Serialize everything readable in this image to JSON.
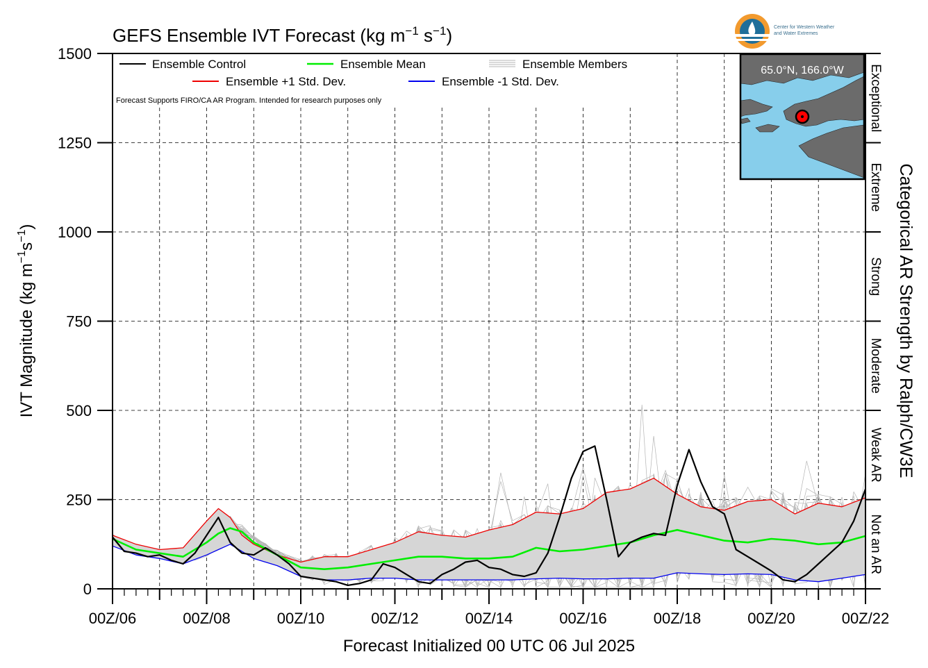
{
  "title_main": "GEFS Ensemble IVT Forecast (kg m",
  "title_sup1": "−1",
  "title_mid": " s",
  "title_sup2": "−1",
  "title_end": ")",
  "xlabel": "Forecast Initialized 00 UTC 06 Jul 2025",
  "ylabel_main": "IVT Magnitude (kg m",
  "ylabel_sup1": "−1",
  "ylabel_mid": "s",
  "ylabel_sup2": "−1",
  "ylabel_end": ")",
  "right_label": "Categorical AR Strength by Ralph/CW3E",
  "note": "Forecast Supports FIRO/CA AR Program. Intended for research purposes only",
  "logo_line1": "Center for Western Weather",
  "logo_line2": "and Water Extremes",
  "location": "65.0°N, 166.0°W",
  "legend": {
    "control": "Ensemble Control",
    "mean": "Ensemble Mean",
    "members": "Ensemble Members",
    "plus": "Ensemble +1 Std. Dev.",
    "minus": "Ensemble -1 Std. Dev."
  },
  "colors": {
    "control": "#000000",
    "mean": "#00ee00",
    "plus": "#ee0000",
    "minus": "#0000ee",
    "members": "#b4b4b4",
    "spread_fill": "#d6d6d6",
    "map_ocean": "#87ceeb",
    "map_land": "#6b6b6b"
  },
  "chart_data": {
    "type": "line",
    "x_unit": "days since 00Z/06 (6-hourly)",
    "xlim": [
      0,
      16
    ],
    "ylim": [
      0,
      1500
    ],
    "y_ticks": [
      0,
      250,
      500,
      750,
      1000,
      1250,
      1500
    ],
    "x_tick_labels": [
      "00Z/06",
      "00Z/08",
      "00Z/10",
      "00Z/12",
      "00Z/14",
      "00Z/16",
      "00Z/18",
      "00Z/20",
      "00Z/22"
    ],
    "x_tick_days": [
      0,
      2,
      4,
      6,
      8,
      10,
      12,
      14,
      16
    ],
    "grid": true,
    "legend_position": "top-left",
    "categories": [
      {
        "label": "Not an AR",
        "from": 0,
        "to": 250
      },
      {
        "label": "Weak AR",
        "from": 250,
        "to": 500
      },
      {
        "label": "Moderate",
        "from": 500,
        "to": 750
      },
      {
        "label": "Strong",
        "from": 750,
        "to": 1000
      },
      {
        "label": "Extreme",
        "from": 1000,
        "to": 1250
      },
      {
        "label": "Exceptional",
        "from": 1250,
        "to": 1500
      }
    ],
    "series": [
      {
        "name": "Ensemble Control",
        "key": "control",
        "x": [
          0,
          0.25,
          0.5,
          0.75,
          1,
          1.25,
          1.5,
          1.75,
          2,
          2.25,
          2.5,
          2.75,
          3,
          3.25,
          3.5,
          3.75,
          4,
          4.25,
          4.5,
          4.75,
          5,
          5.25,
          5.5,
          5.75,
          6,
          6.25,
          6.5,
          6.75,
          7,
          7.25,
          7.5,
          7.75,
          8,
          8.25,
          8.5,
          8.75,
          9,
          9.25,
          9.5,
          9.75,
          10,
          10.25,
          10.5,
          10.75,
          11,
          11.25,
          11.5,
          11.75,
          12,
          12.25,
          12.5,
          12.75,
          13,
          13.25,
          13.5,
          13.75,
          14,
          14.25,
          14.5,
          14.75,
          15,
          15.25,
          15.5,
          15.75,
          16
        ],
        "values": [
          145,
          105,
          100,
          90,
          95,
          80,
          70,
          100,
          150,
          200,
          130,
          100,
          95,
          115,
          95,
          70,
          35,
          30,
          25,
          20,
          10,
          15,
          25,
          70,
          60,
          40,
          20,
          15,
          40,
          55,
          75,
          80,
          60,
          55,
          40,
          35,
          45,
          100,
          200,
          310,
          385,
          400,
          250,
          90,
          130,
          145,
          155,
          150,
          290,
          390,
          300,
          230,
          210,
          110,
          90,
          70,
          50,
          25,
          20,
          40,
          70,
          100,
          130,
          190,
          280
        ]
      },
      {
        "name": "Ensemble Mean",
        "key": "mean",
        "x": [
          0,
          0.5,
          1,
          1.5,
          2,
          2.25,
          2.5,
          2.75,
          3,
          3.5,
          4,
          4.5,
          5,
          5.5,
          6,
          6.5,
          7,
          7.5,
          8,
          8.5,
          9,
          9.5,
          10,
          10.5,
          11,
          11.5,
          12,
          12.5,
          13,
          13.5,
          14,
          14.5,
          15,
          15.5,
          16
        ],
        "values": [
          140,
          110,
          100,
          90,
          130,
          155,
          170,
          160,
          130,
          95,
          60,
          55,
          60,
          70,
          80,
          90,
          90,
          85,
          85,
          90,
          115,
          105,
          110,
          120,
          130,
          150,
          165,
          150,
          135,
          130,
          140,
          135,
          125,
          130,
          148
        ]
      },
      {
        "name": "Ensemble +1 Std. Dev.",
        "key": "plus",
        "x": [
          0,
          0.5,
          1,
          1.5,
          2,
          2.25,
          2.5,
          2.75,
          3,
          3.5,
          4,
          4.5,
          5,
          5.5,
          6,
          6.5,
          7,
          7.5,
          8,
          8.5,
          9,
          9.5,
          10,
          10.5,
          11,
          11.5,
          12,
          12.5,
          13,
          13.5,
          14,
          14.5,
          15,
          15.5,
          16
        ],
        "values": [
          150,
          125,
          110,
          115,
          190,
          225,
          200,
          150,
          125,
          95,
          75,
          90,
          90,
          110,
          130,
          160,
          150,
          145,
          165,
          180,
          215,
          210,
          225,
          270,
          280,
          310,
          265,
          230,
          220,
          245,
          250,
          210,
          240,
          230,
          255
        ]
      },
      {
        "name": "Ensemble -1 Std. Dev.",
        "key": "minus",
        "x": [
          0,
          0.5,
          1,
          1.5,
          2,
          2.25,
          2.5,
          2.75,
          3,
          3.5,
          4,
          4.5,
          5,
          5.5,
          6,
          6.5,
          7,
          7.5,
          8,
          8.5,
          9,
          9.5,
          10,
          10.5,
          11,
          11.5,
          12,
          12.5,
          13,
          13.5,
          14,
          14.5,
          15,
          15.5,
          16
        ],
        "values": [
          120,
          95,
          85,
          70,
          95,
          110,
          125,
          105,
          85,
          65,
          35,
          25,
          25,
          30,
          30,
          25,
          25,
          25,
          25,
          25,
          28,
          30,
          28,
          28,
          30,
          30,
          45,
          42,
          40,
          42,
          40,
          25,
          20,
          30,
          40
        ]
      }
    ]
  }
}
